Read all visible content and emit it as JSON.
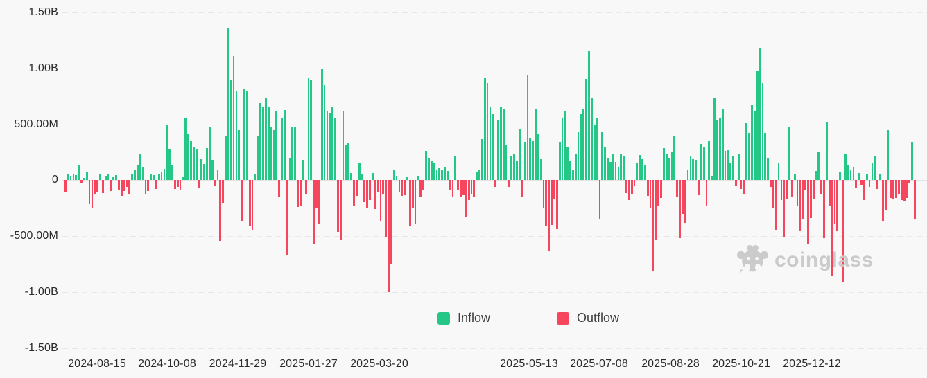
{
  "chart_data": {
    "type": "bar",
    "title": "",
    "xlabel": "",
    "ylabel": "",
    "unit": "USD",
    "ylim_millions": [
      -1500,
      1500
    ],
    "grid": true,
    "legend_position": "bottom",
    "x_ticks": [
      "2024-08-15",
      "2024-10-08",
      "2024-11-29",
      "2025-01-27",
      "2025-03-20",
      "2025-05-13",
      "2025-07-08",
      "2025-08-28",
      "2025-10-21",
      "2025-12-12"
    ],
    "y_ticks": [
      {
        "label": "1.50B",
        "m": 1500
      },
      {
        "label": "1.00B",
        "m": 1000
      },
      {
        "label": "500.00M",
        "m": 500
      },
      {
        "label": "0",
        "m": 0
      },
      {
        "label": "-500.00M",
        "m": -500
      },
      {
        "label": "-1.00B",
        "m": -1000
      },
      {
        "label": "-1.50B",
        "m": -1500
      }
    ],
    "legend": [
      {
        "label": "Inflow",
        "color": "#24C786"
      },
      {
        "label": "Outflow",
        "color": "#F6465D"
      }
    ],
    "watermark_text": "coinglass",
    "colors": {
      "inflow": "#24C786",
      "outflow": "#F6465D",
      "background": "#F8F8F8",
      "grid": "#E8E8E8",
      "axis_text": "#2B2B2B",
      "watermark": "#C9C9C9"
    },
    "values_millions": [
      -100,
      55,
      40,
      60,
      45,
      130,
      -25,
      20,
      70,
      -215,
      -250,
      -120,
      -110,
      55,
      -115,
      40,
      55,
      -95,
      30,
      45,
      -85,
      -140,
      -95,
      -60,
      -120,
      50,
      90,
      140,
      230,
      120,
      -120,
      -95,
      55,
      45,
      -75,
      60,
      75,
      100,
      490,
      280,
      140,
      -80,
      -60,
      -90,
      35,
      560,
      420,
      350,
      300,
      280,
      -70,
      185,
      145,
      285,
      475,
      180,
      -55,
      90,
      -545,
      -200,
      390,
      1360,
      900,
      1110,
      800,
      450,
      -360,
      820,
      800,
      -410,
      -440,
      60,
      390,
      690,
      660,
      730,
      650,
      480,
      450,
      620,
      -150,
      560,
      630,
      -665,
      200,
      475,
      470,
      -240,
      -230,
      180,
      -120,
      920,
      895,
      -570,
      -250,
      -385,
      990,
      850,
      620,
      600,
      650,
      550,
      -460,
      -535,
      620,
      320,
      335,
      65,
      -230,
      -140,
      160,
      60,
      -195,
      -245,
      -175,
      65,
      -260,
      -100,
      -365,
      -120,
      -510,
      -1000,
      -755,
      95,
      40,
      -110,
      -140,
      -130,
      35,
      -410,
      -245,
      -385,
      40,
      -150,
      -90,
      260,
      200,
      170,
      150,
      90,
      105,
      95,
      120,
      80,
      -90,
      -155,
      215,
      -90,
      -155,
      -130,
      -325,
      -180,
      -120,
      -150,
      75,
      90,
      365,
      920,
      870,
      660,
      590,
      -60,
      540,
      660,
      640,
      320,
      -60,
      215,
      235,
      175,
      460,
      -155,
      345,
      940,
      380,
      350,
      640,
      410,
      185,
      -245,
      -415,
      -630,
      -400,
      -165,
      -435,
      340,
      560,
      620,
      300,
      175,
      90,
      240,
      430,
      590,
      640,
      905,
      1160,
      730,
      490,
      555,
      -345,
      430,
      295,
      200,
      165,
      240,
      165,
      120,
      240,
      210,
      -115,
      -180,
      -120,
      -45,
      155,
      225,
      190,
      130,
      -140,
      -245,
      -805,
      -530,
      -230,
      -160,
      290,
      235,
      200,
      250,
      400,
      -155,
      -520,
      -300,
      -380,
      90,
      210,
      185,
      180,
      -125,
      325,
      295,
      -235,
      355,
      40,
      730,
      540,
      560,
      635,
      265,
      270,
      160,
      220,
      -50,
      235,
      -80,
      -120,
      510,
      425,
      670,
      620,
      980,
      1185,
      870,
      425,
      200,
      -60,
      -250,
      -440,
      160,
      -175,
      -510,
      -170,
      470,
      -145,
      60,
      -230,
      -450,
      -350,
      -90,
      -565,
      -340,
      -165,
      85,
      250,
      -120,
      -520,
      525,
      -230,
      -860,
      -390,
      -450,
      70,
      -905,
      230,
      130,
      95,
      120,
      -65,
      65,
      -40,
      -180,
      55,
      -60,
      150,
      220,
      -80,
      55,
      -365,
      -270,
      445,
      -160,
      -170,
      -160,
      -120,
      -180,
      -190,
      -160,
      -25,
      345,
      -345
    ]
  }
}
